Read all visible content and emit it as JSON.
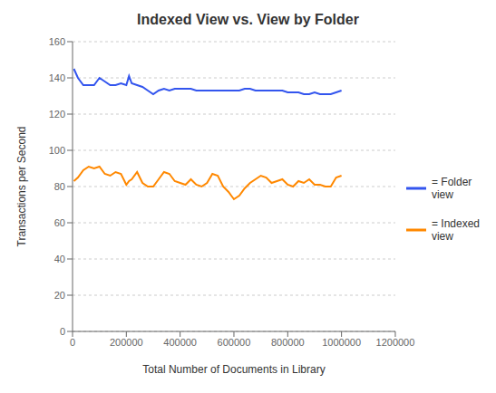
{
  "chart_data": {
    "type": "line",
    "title": "Indexed View vs. View by Folder",
    "xlabel": "Total Number of Documents in Library",
    "ylabel": "Transactions per Second",
    "x": [
      5000,
      20000,
      40000,
      60000,
      80000,
      100000,
      120000,
      140000,
      160000,
      180000,
      200000,
      210000,
      220000,
      240000,
      260000,
      280000,
      300000,
      320000,
      340000,
      360000,
      380000,
      400000,
      420000,
      440000,
      460000,
      480000,
      500000,
      520000,
      540000,
      560000,
      580000,
      600000,
      620000,
      640000,
      660000,
      680000,
      700000,
      720000,
      740000,
      760000,
      780000,
      800000,
      820000,
      840000,
      860000,
      880000,
      900000,
      920000,
      940000,
      960000,
      980000,
      1000000
    ],
    "series": [
      {
        "name": "= Folder\nview",
        "color": "#3355ee",
        "values": [
          145,
          140,
          136,
          136,
          136,
          140,
          138,
          136,
          136,
          137,
          136,
          141,
          137,
          136,
          135,
          133,
          131,
          133,
          134,
          133,
          134,
          134,
          134,
          134,
          133,
          133,
          133,
          133,
          133,
          133,
          133,
          133,
          133,
          134,
          134,
          133,
          133,
          133,
          133,
          133,
          133,
          132,
          132,
          132,
          131,
          131,
          132,
          131,
          131,
          131,
          132,
          133
        ]
      },
      {
        "name": "= Indexed\nview",
        "color": "#ff8800",
        "values": [
          83,
          85,
          89,
          91,
          90,
          91,
          87,
          86,
          88,
          87,
          81,
          83,
          84,
          88,
          82,
          80,
          80,
          84,
          88,
          87,
          83,
          82,
          81,
          84,
          81,
          80,
          82,
          87,
          86,
          80,
          77,
          73,
          75,
          79,
          82,
          84,
          86,
          85,
          82,
          83,
          84,
          81,
          80,
          83,
          82,
          84,
          81,
          81,
          80,
          80,
          85,
          86
        ]
      }
    ],
    "xlim": [
      0,
      1200000
    ],
    "ylim": [
      0,
      160
    ],
    "xticks": [
      0,
      200000,
      400000,
      600000,
      800000,
      1000000,
      1200000
    ],
    "yticks": [
      0,
      20,
      40,
      60,
      80,
      100,
      120,
      140,
      160
    ],
    "grid": "y",
    "legend": "right"
  }
}
